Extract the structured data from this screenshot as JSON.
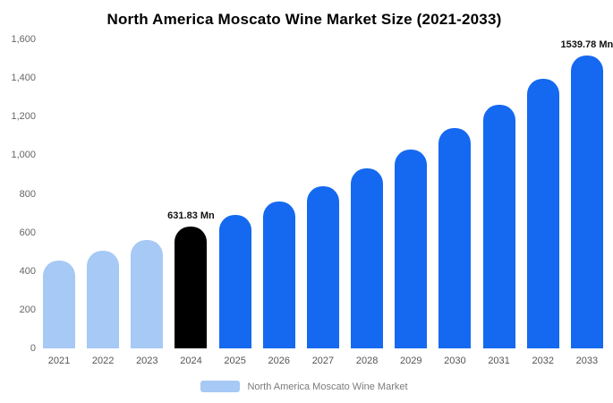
{
  "title": "North America Moscato Wine Market Size (2021-2033)",
  "legend": {
    "label": "North America Moscato Wine Market",
    "swatch_color": "#a6c9f5"
  },
  "colors": {
    "historical": "#a6c9f5",
    "base_year": "#000000",
    "forecast": "#1569f0"
  },
  "chart_data": {
    "type": "bar",
    "title": "North America Moscato Wine Market Size (2021-2033)",
    "xlabel": "",
    "ylabel": "",
    "unit": "Mn",
    "ylim": [
      0,
      1600
    ],
    "grid": false,
    "legend_position": "bottom",
    "ytick_values": [
      0,
      200,
      400,
      600,
      800,
      1000,
      1200,
      1400,
      1600
    ],
    "ytick_labels": [
      "0",
      "200",
      "400",
      "600",
      "800",
      "1,000",
      "1,200",
      "1,400",
      "1,600"
    ],
    "categories": [
      "2021",
      "2022",
      "2023",
      "2024",
      "2025",
      "2026",
      "2027",
      "2028",
      "2029",
      "2030",
      "2031",
      "2032",
      "2033"
    ],
    "values": [
      455,
      505,
      560,
      631.83,
      690,
      760,
      840,
      930,
      1030,
      1140,
      1260,
      1395,
      1539.78
    ],
    "bar_colors": [
      "#a6c9f5",
      "#a6c9f5",
      "#a6c9f5",
      "#000000",
      "#1569f0",
      "#1569f0",
      "#1569f0",
      "#1569f0",
      "#1569f0",
      "#1569f0",
      "#1569f0",
      "#1569f0",
      "#1569f0"
    ],
    "annotations": {
      "2024": "631.83 Mn",
      "2033": "1539.78 Mn"
    }
  }
}
